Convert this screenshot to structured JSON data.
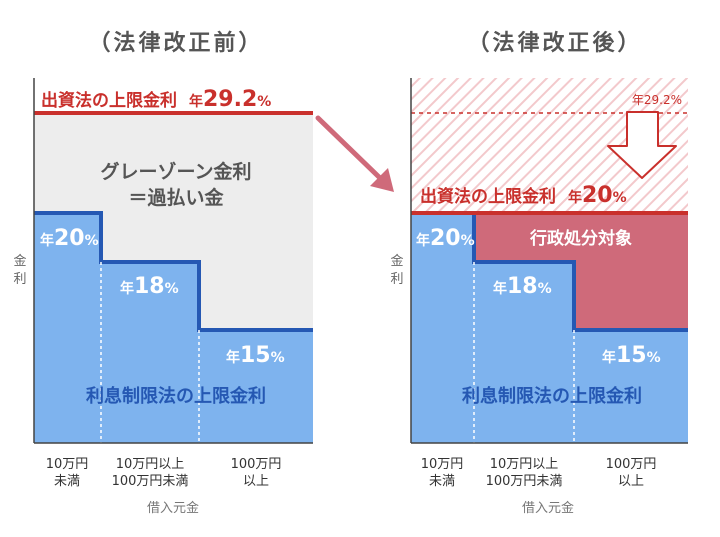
{
  "colors": {
    "blue": "#7eb3ee",
    "blue_dark": "#2558b3",
    "red": "#c9302c",
    "rose": "#cf6a7a",
    "gray_zone": "#ededed",
    "hatch": "#f3c9cc",
    "axis": "#444444",
    "muted_text": "#666666"
  },
  "before": {
    "title": "（法律改正前）",
    "cap_label": "出資法の上限金利",
    "cap_rate_prefix": "年",
    "cap_rate_value": "29.2",
    "cap_rate_unit": "%",
    "gray_zone_line1": "グレーゾーン金利",
    "gray_zone_line2": "＝過払い金"
  },
  "after": {
    "title": "（法律改正後）",
    "old_cap_rate": "年29.2%",
    "cap_label": "出資法の上限金利",
    "cap_rate_prefix": "年",
    "cap_rate_value": "20",
    "cap_rate_unit": "%",
    "admin_zone_label": "行政処分対象"
  },
  "common": {
    "y_axis_label_1": "金",
    "y_axis_label_2": "利",
    "interest_law_label": "利息制限法の上限金利",
    "x_axis_title": "借入元金",
    "tiers": [
      {
        "prefix": "年",
        "value": "20",
        "unit": "%",
        "line1": "10万円",
        "line2": "未満"
      },
      {
        "prefix": "年",
        "value": "18",
        "unit": "%",
        "line1": "10万円以上",
        "line2": "100万円未満"
      },
      {
        "prefix": "年",
        "value": "15",
        "unit": "%",
        "line1": "100万円",
        "line2": "以上"
      }
    ]
  }
}
